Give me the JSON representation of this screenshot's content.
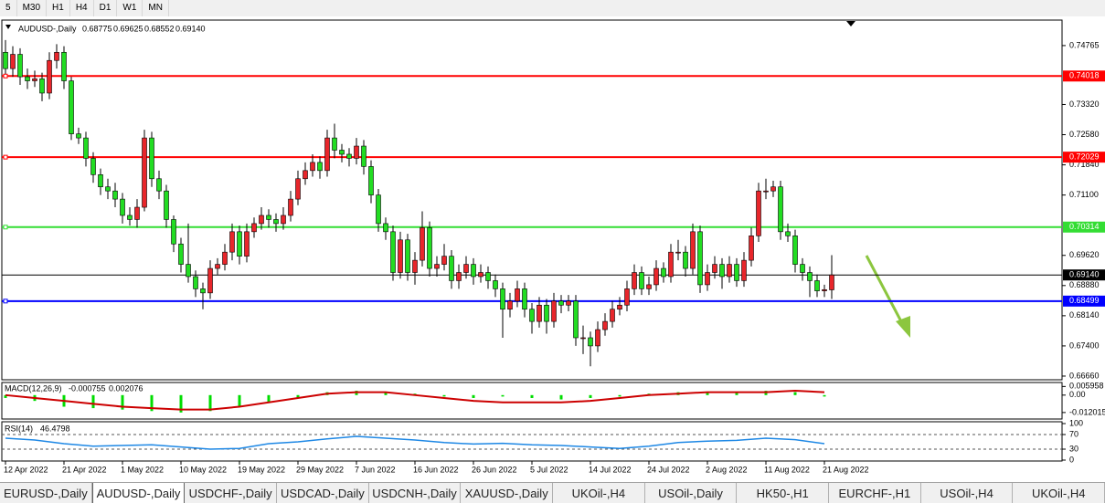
{
  "toolbar": [
    "5",
    "M30",
    "H1",
    "H4",
    "D1",
    "W1",
    "MN"
  ],
  "header": {
    "symbol": "AUDUSD-,Daily",
    "readout": [
      "0.68775",
      "0.69625",
      "0.68552",
      "0.69140"
    ]
  },
  "chart_data": [
    {
      "type": "candlestick",
      "bull_color": "#e8262b",
      "bear_color": "#22dd22",
      "ylim": [
        0.6657,
        0.7539
      ],
      "yticks": [
        0.74765,
        {
          "value": 0.7332,
          "label": "0.73320"
        },
        {
          "value": 0.7258,
          "label": "0.72580"
        },
        {
          "value": 0.7184,
          "label": "0.71840"
        },
        {
          "value": 0.711,
          "label": "0.71100"
        },
        {
          "value": 0.6962,
          "label": "0.69620"
        },
        {
          "value": 0.6888,
          "label": "0.68880"
        },
        {
          "value": 0.6814,
          "label": "0.68140"
        },
        {
          "value": 0.674,
          "label": "0.67400"
        },
        {
          "value": 0.6666,
          "label": "0.66660"
        }
      ],
      "xticks": [
        {
          "value": 0,
          "label": "12 Apr 2022"
        },
        {
          "value": 8,
          "label": "21 Apr 2022"
        },
        {
          "value": 16,
          "label": "1 May 2022"
        },
        {
          "value": 24,
          "label": "10 May 2022"
        },
        {
          "value": 32,
          "label": "19 May 2022"
        },
        {
          "value": 40,
          "label": "29 May 2022"
        },
        {
          "value": 48,
          "label": "7 Jun 2022"
        },
        {
          "value": 56,
          "label": "16 Jun 2022"
        },
        {
          "value": 64,
          "label": "26 Jun 2022"
        },
        {
          "value": 72,
          "label": "5 Jul 2022"
        },
        {
          "value": 80,
          "label": "14 Jul 2022"
        },
        {
          "value": 88,
          "label": "24 Jul 2022"
        },
        {
          "value": 96,
          "label": "2 Aug 2022"
        },
        {
          "value": 104,
          "label": "11 Aug 2022"
        },
        {
          "value": 112,
          "label": "21 Aug 2022"
        }
      ],
      "levels": [
        {
          "value": 0.74018,
          "color": "#ff0000"
        },
        {
          "value": 0.72029,
          "color": "#ff0000"
        },
        {
          "value": 0.70314,
          "color": "#33dd33"
        },
        {
          "value": 0.6914,
          "label": "0.69140",
          "color": "#000000"
        },
        {
          "value": 0.68499,
          "color": "#0000ff"
        }
      ],
      "ohlc": [
        [
          0.746,
          0.749,
          0.74,
          0.742
        ],
        [
          0.742,
          0.7475,
          0.74,
          0.7455
        ],
        [
          0.7455,
          0.747,
          0.738,
          0.74
        ],
        [
          0.74,
          0.742,
          0.737,
          0.739
        ],
        [
          0.739,
          0.7415,
          0.7375,
          0.7395
        ],
        [
          0.7395,
          0.741,
          0.734,
          0.736
        ],
        [
          0.736,
          0.746,
          0.7345,
          0.744
        ],
        [
          0.744,
          0.748,
          0.742,
          0.746
        ],
        [
          0.746,
          0.7475,
          0.737,
          0.739
        ],
        [
          0.739,
          0.74,
          0.7245,
          0.726
        ],
        [
          0.726,
          0.7275,
          0.7235,
          0.725
        ],
        [
          0.725,
          0.7265,
          0.718,
          0.72
        ],
        [
          0.72,
          0.7215,
          0.714,
          0.716
        ],
        [
          0.716,
          0.7175,
          0.711,
          0.713
        ],
        [
          0.713,
          0.715,
          0.71,
          0.712
        ],
        [
          0.712,
          0.714,
          0.708,
          0.71
        ],
        [
          0.71,
          0.7115,
          0.704,
          0.706
        ],
        [
          0.706,
          0.708,
          0.7035,
          0.705
        ],
        [
          0.705,
          0.71,
          0.703,
          0.708
        ],
        [
          0.708,
          0.727,
          0.707,
          0.725
        ],
        [
          0.725,
          0.7265,
          0.713,
          0.715
        ],
        [
          0.715,
          0.717,
          0.71,
          0.712
        ],
        [
          0.712,
          0.7135,
          0.703,
          0.705
        ],
        [
          0.705,
          0.706,
          0.697,
          0.699
        ],
        [
          0.699,
          0.7005,
          0.692,
          0.694
        ],
        [
          0.694,
          0.704,
          0.6895,
          0.691
        ],
        [
          0.691,
          0.6925,
          0.686,
          0.688
        ],
        [
          0.688,
          0.6895,
          0.683,
          0.687
        ],
        [
          0.687,
          0.695,
          0.6855,
          0.693
        ],
        [
          0.693,
          0.6955,
          0.6915,
          0.694
        ],
        [
          0.694,
          0.699,
          0.6925,
          0.697
        ],
        [
          0.697,
          0.704,
          0.695,
          0.702
        ],
        [
          0.702,
          0.7035,
          0.694,
          0.696
        ],
        [
          0.696,
          0.704,
          0.6945,
          0.702
        ],
        [
          0.702,
          0.7055,
          0.7005,
          0.704
        ],
        [
          0.704,
          0.708,
          0.7025,
          0.706
        ],
        [
          0.706,
          0.7075,
          0.703,
          0.705
        ],
        [
          0.705,
          0.7065,
          0.702,
          0.704
        ],
        [
          0.704,
          0.708,
          0.7025,
          0.706
        ],
        [
          0.706,
          0.712,
          0.7045,
          0.71
        ],
        [
          0.71,
          0.717,
          0.7085,
          0.715
        ],
        [
          0.715,
          0.719,
          0.7135,
          0.717
        ],
        [
          0.717,
          0.721,
          0.7155,
          0.719
        ],
        [
          0.719,
          0.7205,
          0.715,
          0.717
        ],
        [
          0.717,
          0.727,
          0.7155,
          0.725
        ],
        [
          0.725,
          0.7285,
          0.72,
          0.722
        ],
        [
          0.722,
          0.7235,
          0.719,
          0.721
        ],
        [
          0.721,
          0.7225,
          0.718,
          0.72
        ],
        [
          0.72,
          0.725,
          0.7185,
          0.723
        ],
        [
          0.723,
          0.7245,
          0.716,
          0.718
        ],
        [
          0.718,
          0.7195,
          0.709,
          0.711
        ],
        [
          0.711,
          0.7125,
          0.702,
          0.704
        ],
        [
          0.704,
          0.7055,
          0.7,
          0.702
        ],
        [
          0.702,
          0.7035,
          0.69,
          0.692
        ],
        [
          0.692,
          0.702,
          0.6905,
          0.7
        ],
        [
          0.7,
          0.7015,
          0.69,
          0.692
        ],
        [
          0.692,
          0.697,
          0.689,
          0.695
        ],
        [
          0.695,
          0.707,
          0.6935,
          0.703
        ],
        [
          0.703,
          0.7045,
          0.691,
          0.693
        ],
        [
          0.693,
          0.696,
          0.691,
          0.694
        ],
        [
          0.694,
          0.699,
          0.6925,
          0.696
        ],
        [
          0.696,
          0.6975,
          0.688,
          0.69
        ],
        [
          0.69,
          0.694,
          0.688,
          0.692
        ],
        [
          0.692,
          0.696,
          0.6905,
          0.694
        ],
        [
          0.694,
          0.6955,
          0.689,
          0.691
        ],
        [
          0.691,
          0.694,
          0.6895,
          0.692
        ],
        [
          0.692,
          0.6935,
          0.688,
          0.69
        ],
        [
          0.69,
          0.6915,
          0.686,
          0.688
        ],
        [
          0.688,
          0.6895,
          0.676,
          0.683
        ],
        [
          0.683,
          0.687,
          0.681,
          0.685
        ],
        [
          0.685,
          0.69,
          0.6835,
          0.688
        ],
        [
          0.688,
          0.6895,
          0.681,
          0.683
        ],
        [
          0.683,
          0.6845,
          0.677,
          0.68
        ],
        [
          0.68,
          0.686,
          0.6785,
          0.684
        ],
        [
          0.684,
          0.6855,
          0.677,
          0.68
        ],
        [
          0.68,
          0.687,
          0.6785,
          0.685
        ],
        [
          0.685,
          0.6865,
          0.682,
          0.684
        ],
        [
          0.684,
          0.6865,
          0.6825,
          0.685
        ],
        [
          0.685,
          0.6865,
          0.674,
          0.676
        ],
        [
          0.676,
          0.679,
          0.672,
          0.676
        ],
        [
          0.676,
          0.6775,
          0.669,
          0.674
        ],
        [
          0.674,
          0.68,
          0.6725,
          0.678
        ],
        [
          0.678,
          0.682,
          0.6765,
          0.68
        ],
        [
          0.68,
          0.685,
          0.6785,
          0.683
        ],
        [
          0.683,
          0.686,
          0.6815,
          0.684
        ],
        [
          0.684,
          0.69,
          0.6825,
          0.688
        ],
        [
          0.688,
          0.694,
          0.6865,
          0.692
        ],
        [
          0.692,
          0.6935,
          0.6865,
          0.688
        ],
        [
          0.688,
          0.691,
          0.6865,
          0.689
        ],
        [
          0.689,
          0.695,
          0.6875,
          0.693
        ],
        [
          0.693,
          0.6945,
          0.6895,
          0.691
        ],
        [
          0.691,
          0.699,
          0.6895,
          0.697
        ],
        [
          0.697,
          0.7,
          0.695,
          0.697
        ],
        [
          0.697,
          0.6985,
          0.691,
          0.693
        ],
        [
          0.693,
          0.704,
          0.6915,
          0.702
        ],
        [
          0.702,
          0.7035,
          0.687,
          0.689
        ],
        [
          0.689,
          0.694,
          0.6875,
          0.692
        ],
        [
          0.692,
          0.696,
          0.6905,
          0.694
        ],
        [
          0.694,
          0.6955,
          0.688,
          0.691
        ],
        [
          0.691,
          0.696,
          0.6895,
          0.694
        ],
        [
          0.694,
          0.6955,
          0.6885,
          0.69
        ],
        [
          0.69,
          0.697,
          0.6885,
          0.695
        ],
        [
          0.695,
          0.703,
          0.6935,
          0.701
        ],
        [
          0.701,
          0.714,
          0.6995,
          0.712
        ],
        [
          0.712,
          0.715,
          0.71,
          0.712
        ],
        [
          0.712,
          0.7145,
          0.7105,
          0.713
        ],
        [
          0.713,
          0.7145,
          0.7,
          0.702
        ],
        [
          0.702,
          0.704,
          0.6995,
          0.701
        ],
        [
          0.701,
          0.7025,
          0.692,
          0.694
        ],
        [
          0.694,
          0.6955,
          0.69,
          0.692
        ],
        [
          0.692,
          0.6935,
          0.686,
          0.69
        ],
        [
          0.69,
          0.6915,
          0.686,
          0.6875
        ],
        [
          0.6875,
          0.689,
          0.686,
          0.6878
        ],
        [
          0.68775,
          0.69625,
          0.68552,
          0.6914
        ]
      ]
    },
    {
      "type": "macd",
      "title": "MACD(12,26,9)",
      "readout": [
        "-0.000755",
        "0.002076"
      ],
      "ylim": [
        -0.0165,
        0.0087
      ],
      "yticks": [
        0.005958,
        {
          "value": 0,
          "label": "0.00"
        },
        -0.012015
      ],
      "x": [
        0,
        4,
        8,
        12,
        16,
        20,
        24,
        28,
        32,
        36,
        40,
        44,
        48,
        52,
        56,
        60,
        64,
        68,
        72,
        76,
        80,
        84,
        88,
        92,
        96,
        100,
        104,
        108,
        112
      ],
      "histogram": {
        "color": "#00dd00",
        "values": [
          -0.002,
          -0.004,
          -0.008,
          -0.009,
          -0.01,
          -0.011,
          -0.012,
          -0.011,
          -0.008,
          -0.005,
          -0.002,
          0.002,
          0.003,
          0.002,
          0.001,
          -0.001,
          -0.002,
          -0.001,
          -0.002,
          -0.003,
          -0.002,
          -0.001,
          0.001,
          0.002,
          0.002,
          0.002,
          0.003,
          0.002,
          -0.001
        ]
      },
      "signal": {
        "color": "#cc0000",
        "values": [
          0,
          -0.002,
          -0.004,
          -0.006,
          -0.008,
          -0.009,
          -0.01,
          -0.01,
          -0.008,
          -0.005,
          -0.002,
          0.001,
          0.002,
          0.002,
          0,
          -0.002,
          -0.004,
          -0.005,
          -0.005,
          -0.005,
          -0.004,
          -0.002,
          0,
          0.001,
          0.002,
          0.002,
          0.002,
          0.003,
          0.002
        ]
      }
    },
    {
      "type": "line",
      "title": "RSI(14)",
      "readout": "46.4798",
      "color": "#1e88e5",
      "ylim": [
        0,
        100
      ],
      "yticks": [
        100,
        70,
        30,
        0
      ],
      "levels": [
        70,
        30
      ],
      "x": [
        0,
        4,
        8,
        12,
        16,
        20,
        24,
        28,
        32,
        36,
        40,
        44,
        48,
        52,
        56,
        60,
        64,
        68,
        72,
        76,
        80,
        84,
        88,
        92,
        96,
        100,
        104,
        108,
        112
      ],
      "values": [
        60,
        55,
        45,
        38,
        40,
        42,
        36,
        30,
        32,
        45,
        50,
        58,
        65,
        60,
        55,
        48,
        44,
        46,
        42,
        40,
        36,
        32,
        38,
        48,
        52,
        54,
        60,
        56,
        45
      ]
    }
  ],
  "tabs": [
    "EURUSD-,Daily",
    "AUDUSD-,Daily",
    "USDCHF-,Daily",
    "USDCAD-,Daily",
    "USDCNH-,Daily",
    "XAUUSD-,Daily",
    "UKOil-,H4",
    "USOil-,Daily",
    "HK50-,H1",
    "EURCHF-,H1",
    "USOil-,H4",
    "UKOil-,H4"
  ]
}
